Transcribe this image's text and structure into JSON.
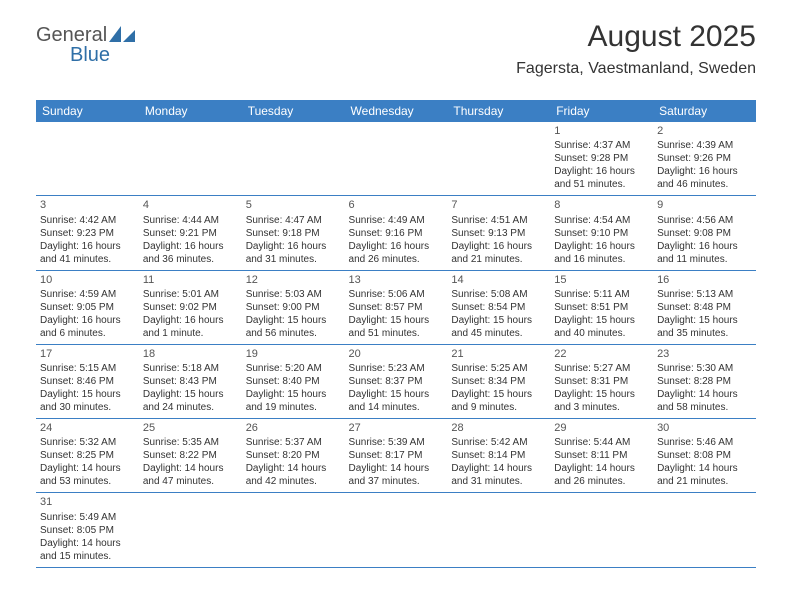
{
  "logo": {
    "general": "General",
    "blue": "Blue"
  },
  "header": {
    "title": "August 2025",
    "location": "Fagersta, Vaestmanland, Sweden"
  },
  "colors": {
    "header_bg": "#3b7fc4",
    "header_text": "#ffffff",
    "border": "#3b7fc4",
    "text": "#333333",
    "logo_gray": "#555555",
    "logo_blue": "#2f6fa7",
    "page_bg": "#ffffff"
  },
  "typography": {
    "title_fontsize": 30,
    "location_fontsize": 16,
    "weekday_fontsize": 12,
    "daynum_fontsize": 11,
    "body_fontsize": 10
  },
  "weekdays": [
    "Sunday",
    "Monday",
    "Tuesday",
    "Wednesday",
    "Thursday",
    "Friday",
    "Saturday"
  ],
  "calendar": {
    "type": "table",
    "columns": 7,
    "rows": 6,
    "leading_blanks": 5,
    "days": [
      {
        "n": "1",
        "sunrise": "Sunrise: 4:37 AM",
        "sunset": "Sunset: 9:28 PM",
        "daylight": "Daylight: 16 hours and 51 minutes."
      },
      {
        "n": "2",
        "sunrise": "Sunrise: 4:39 AM",
        "sunset": "Sunset: 9:26 PM",
        "daylight": "Daylight: 16 hours and 46 minutes."
      },
      {
        "n": "3",
        "sunrise": "Sunrise: 4:42 AM",
        "sunset": "Sunset: 9:23 PM",
        "daylight": "Daylight: 16 hours and 41 minutes."
      },
      {
        "n": "4",
        "sunrise": "Sunrise: 4:44 AM",
        "sunset": "Sunset: 9:21 PM",
        "daylight": "Daylight: 16 hours and 36 minutes."
      },
      {
        "n": "5",
        "sunrise": "Sunrise: 4:47 AM",
        "sunset": "Sunset: 9:18 PM",
        "daylight": "Daylight: 16 hours and 31 minutes."
      },
      {
        "n": "6",
        "sunrise": "Sunrise: 4:49 AM",
        "sunset": "Sunset: 9:16 PM",
        "daylight": "Daylight: 16 hours and 26 minutes."
      },
      {
        "n": "7",
        "sunrise": "Sunrise: 4:51 AM",
        "sunset": "Sunset: 9:13 PM",
        "daylight": "Daylight: 16 hours and 21 minutes."
      },
      {
        "n": "8",
        "sunrise": "Sunrise: 4:54 AM",
        "sunset": "Sunset: 9:10 PM",
        "daylight": "Daylight: 16 hours and 16 minutes."
      },
      {
        "n": "9",
        "sunrise": "Sunrise: 4:56 AM",
        "sunset": "Sunset: 9:08 PM",
        "daylight": "Daylight: 16 hours and 11 minutes."
      },
      {
        "n": "10",
        "sunrise": "Sunrise: 4:59 AM",
        "sunset": "Sunset: 9:05 PM",
        "daylight": "Daylight: 16 hours and 6 minutes."
      },
      {
        "n": "11",
        "sunrise": "Sunrise: 5:01 AM",
        "sunset": "Sunset: 9:02 PM",
        "daylight": "Daylight: 16 hours and 1 minute."
      },
      {
        "n": "12",
        "sunrise": "Sunrise: 5:03 AM",
        "sunset": "Sunset: 9:00 PM",
        "daylight": "Daylight: 15 hours and 56 minutes."
      },
      {
        "n": "13",
        "sunrise": "Sunrise: 5:06 AM",
        "sunset": "Sunset: 8:57 PM",
        "daylight": "Daylight: 15 hours and 51 minutes."
      },
      {
        "n": "14",
        "sunrise": "Sunrise: 5:08 AM",
        "sunset": "Sunset: 8:54 PM",
        "daylight": "Daylight: 15 hours and 45 minutes."
      },
      {
        "n": "15",
        "sunrise": "Sunrise: 5:11 AM",
        "sunset": "Sunset: 8:51 PM",
        "daylight": "Daylight: 15 hours and 40 minutes."
      },
      {
        "n": "16",
        "sunrise": "Sunrise: 5:13 AM",
        "sunset": "Sunset: 8:48 PM",
        "daylight": "Daylight: 15 hours and 35 minutes."
      },
      {
        "n": "17",
        "sunrise": "Sunrise: 5:15 AM",
        "sunset": "Sunset: 8:46 PM",
        "daylight": "Daylight: 15 hours and 30 minutes."
      },
      {
        "n": "18",
        "sunrise": "Sunrise: 5:18 AM",
        "sunset": "Sunset: 8:43 PM",
        "daylight": "Daylight: 15 hours and 24 minutes."
      },
      {
        "n": "19",
        "sunrise": "Sunrise: 5:20 AM",
        "sunset": "Sunset: 8:40 PM",
        "daylight": "Daylight: 15 hours and 19 minutes."
      },
      {
        "n": "20",
        "sunrise": "Sunrise: 5:23 AM",
        "sunset": "Sunset: 8:37 PM",
        "daylight": "Daylight: 15 hours and 14 minutes."
      },
      {
        "n": "21",
        "sunrise": "Sunrise: 5:25 AM",
        "sunset": "Sunset: 8:34 PM",
        "daylight": "Daylight: 15 hours and 9 minutes."
      },
      {
        "n": "22",
        "sunrise": "Sunrise: 5:27 AM",
        "sunset": "Sunset: 8:31 PM",
        "daylight": "Daylight: 15 hours and 3 minutes."
      },
      {
        "n": "23",
        "sunrise": "Sunrise: 5:30 AM",
        "sunset": "Sunset: 8:28 PM",
        "daylight": "Daylight: 14 hours and 58 minutes."
      },
      {
        "n": "24",
        "sunrise": "Sunrise: 5:32 AM",
        "sunset": "Sunset: 8:25 PM",
        "daylight": "Daylight: 14 hours and 53 minutes."
      },
      {
        "n": "25",
        "sunrise": "Sunrise: 5:35 AM",
        "sunset": "Sunset: 8:22 PM",
        "daylight": "Daylight: 14 hours and 47 minutes."
      },
      {
        "n": "26",
        "sunrise": "Sunrise: 5:37 AM",
        "sunset": "Sunset: 8:20 PM",
        "daylight": "Daylight: 14 hours and 42 minutes."
      },
      {
        "n": "27",
        "sunrise": "Sunrise: 5:39 AM",
        "sunset": "Sunset: 8:17 PM",
        "daylight": "Daylight: 14 hours and 37 minutes."
      },
      {
        "n": "28",
        "sunrise": "Sunrise: 5:42 AM",
        "sunset": "Sunset: 8:14 PM",
        "daylight": "Daylight: 14 hours and 31 minutes."
      },
      {
        "n": "29",
        "sunrise": "Sunrise: 5:44 AM",
        "sunset": "Sunset: 8:11 PM",
        "daylight": "Daylight: 14 hours and 26 minutes."
      },
      {
        "n": "30",
        "sunrise": "Sunrise: 5:46 AM",
        "sunset": "Sunset: 8:08 PM",
        "daylight": "Daylight: 14 hours and 21 minutes."
      },
      {
        "n": "31",
        "sunrise": "Sunrise: 5:49 AM",
        "sunset": "Sunset: 8:05 PM",
        "daylight": "Daylight: 14 hours and 15 minutes."
      }
    ]
  }
}
